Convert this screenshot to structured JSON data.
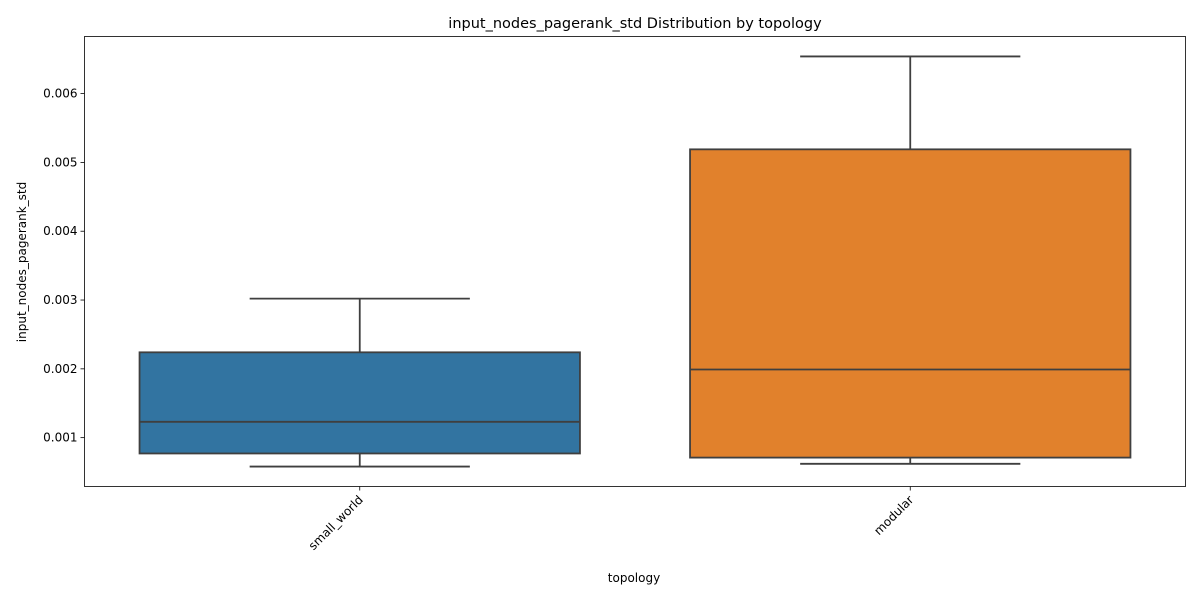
{
  "chart_data": {
    "type": "box",
    "title": "input_nodes_pagerank_std Distribution by topology",
    "xlabel": "topology",
    "ylabel": "input_nodes_pagerank_std",
    "categories": [
      "small_world",
      "modular"
    ],
    "boxes": [
      {
        "category": "small_world",
        "whisker_low": 0.00058,
        "q1": 0.00077,
        "median": 0.00123,
        "q3": 0.00224,
        "whisker_high": 0.00302,
        "color": "#3274a1"
      },
      {
        "category": "modular",
        "whisker_low": 0.00062,
        "q1": 0.00071,
        "median": 0.00199,
        "q3": 0.00519,
        "whisker_high": 0.00654,
        "color": "#e1812c"
      }
    ],
    "yticks": [
      0.001,
      0.002,
      0.003,
      0.004,
      0.005,
      0.006
    ],
    "ytick_labels": [
      "0.001",
      "0.002",
      "0.003",
      "0.004",
      "0.005",
      "0.006"
    ],
    "ylim": [
      0.00029,
      0.00683
    ],
    "grid": false,
    "line_color": "#3f3f3f"
  }
}
